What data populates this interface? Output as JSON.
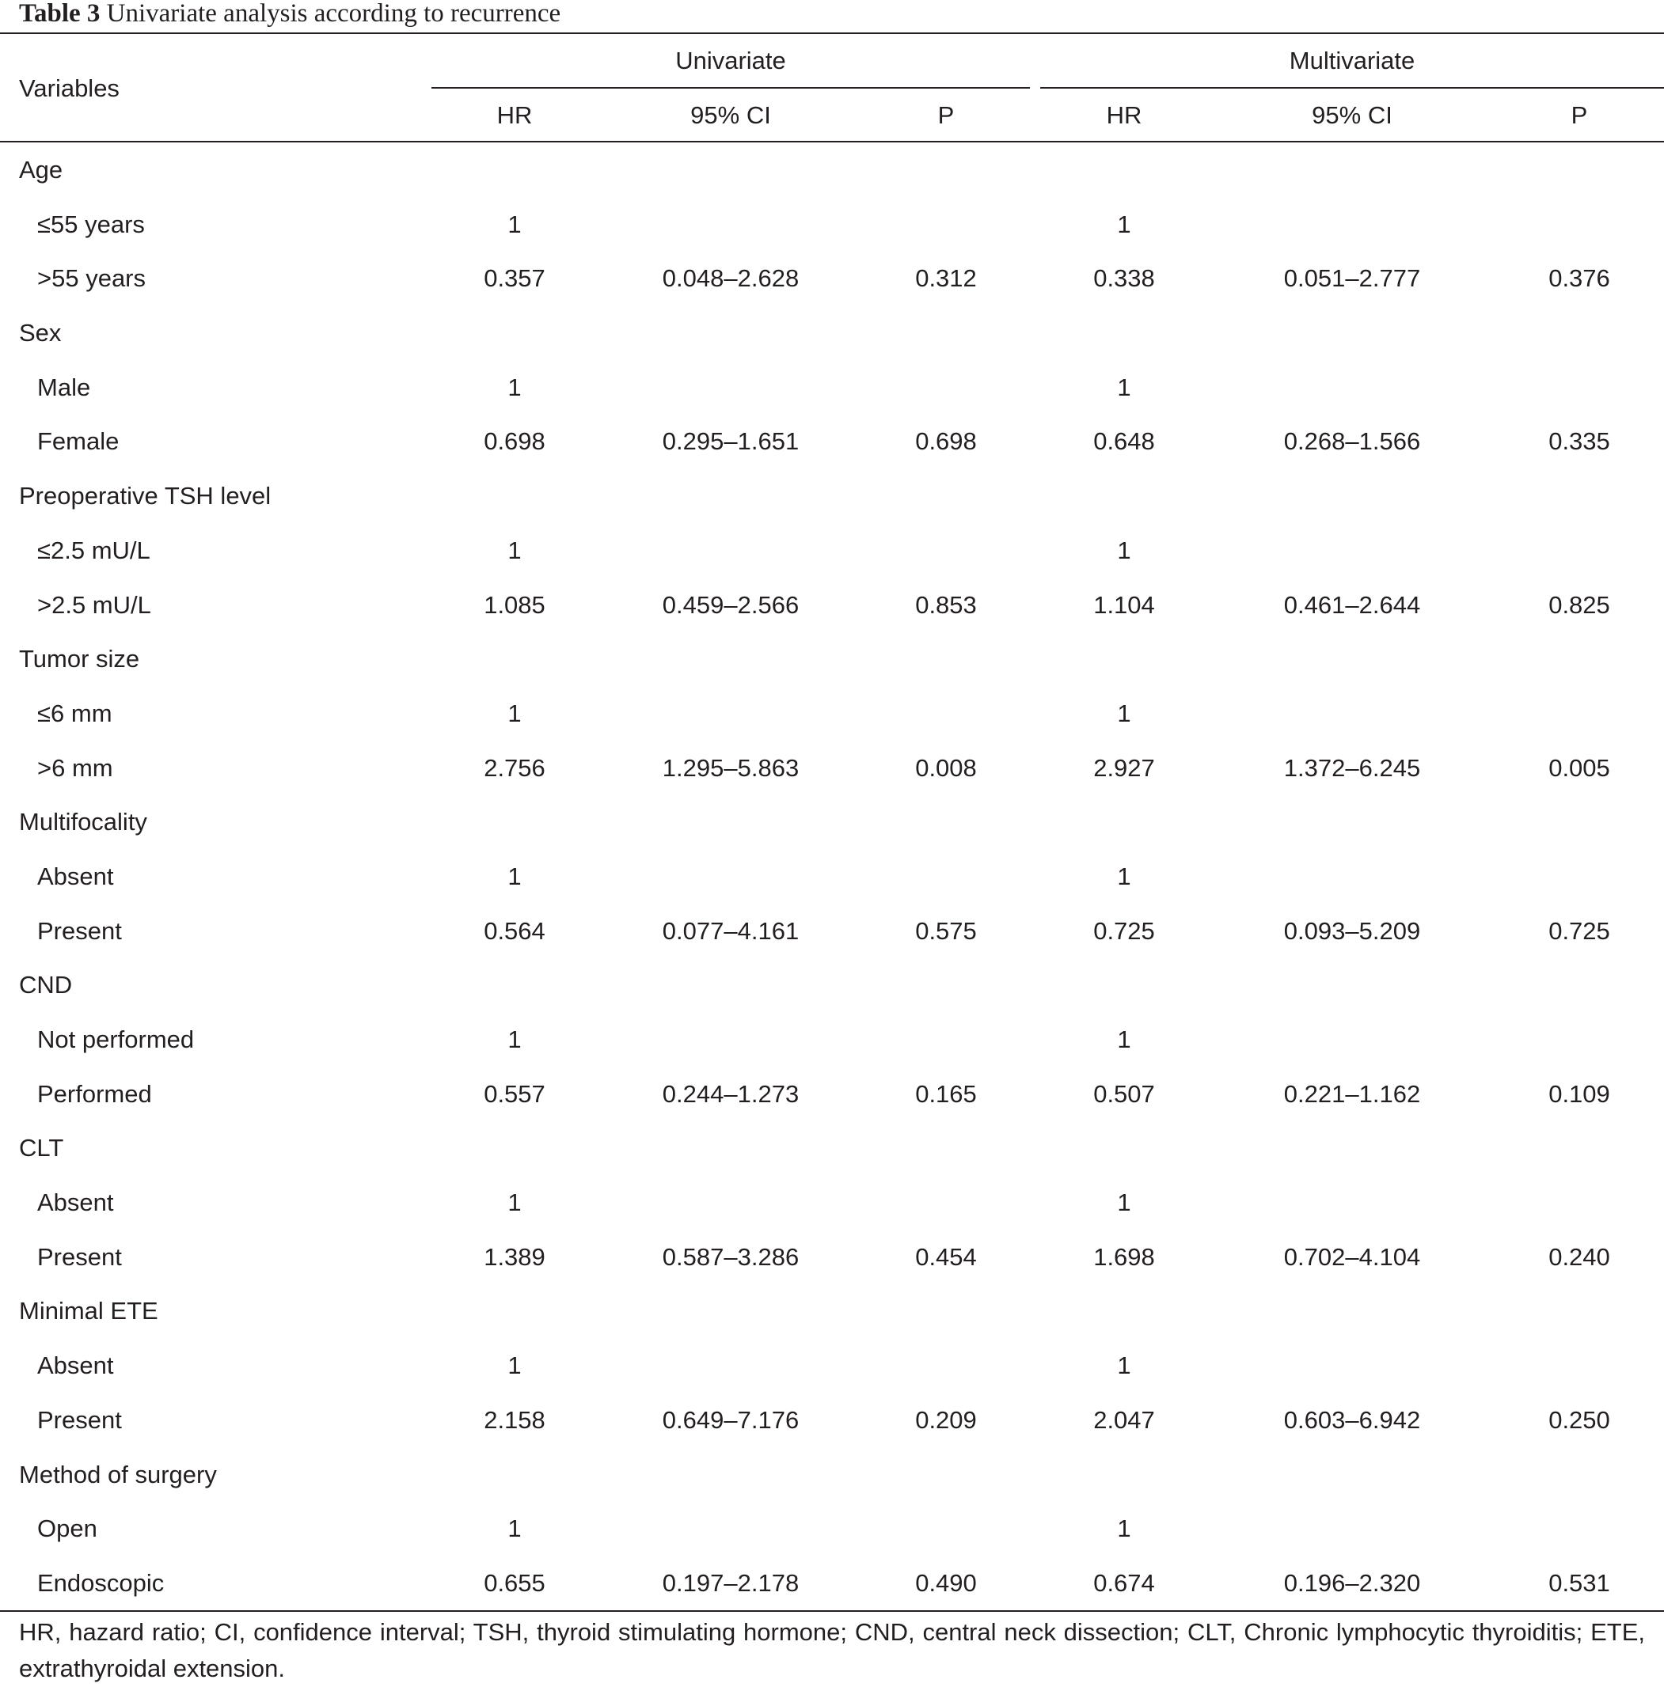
{
  "caption": {
    "label": "Table 3",
    "title": "Univariate analysis according to recurrence"
  },
  "header": {
    "variables": "Variables",
    "univariate": "Univariate",
    "multivariate": "Multivariate",
    "hr": "HR",
    "ci": "95% CI",
    "p": "P"
  },
  "rows": [
    {
      "type": "group",
      "label": "Age"
    },
    {
      "type": "item",
      "label": "≤55 years",
      "u_hr": "1",
      "u_ci": "",
      "u_p": "",
      "m_hr": "1",
      "m_ci": "",
      "m_p": ""
    },
    {
      "type": "item",
      "label": ">55 years",
      "u_hr": "0.357",
      "u_ci": "0.048–2.628",
      "u_p": "0.312",
      "m_hr": "0.338",
      "m_ci": "0.051–2.777",
      "m_p": "0.376"
    },
    {
      "type": "group",
      "label": "Sex"
    },
    {
      "type": "item",
      "label": "Male",
      "u_hr": "1",
      "u_ci": "",
      "u_p": "",
      "m_hr": "1",
      "m_ci": "",
      "m_p": ""
    },
    {
      "type": "item",
      "label": "Female",
      "u_hr": "0.698",
      "u_ci": "0.295–1.651",
      "u_p": "0.698",
      "m_hr": "0.648",
      "m_ci": "0.268–1.566",
      "m_p": "0.335"
    },
    {
      "type": "group",
      "label": "Preoperative TSH level"
    },
    {
      "type": "item",
      "label": "≤2.5 mU/L",
      "u_hr": "1",
      "u_ci": "",
      "u_p": "",
      "m_hr": "1",
      "m_ci": "",
      "m_p": ""
    },
    {
      "type": "item",
      "label": ">2.5 mU/L",
      "u_hr": "1.085",
      "u_ci": "0.459–2.566",
      "u_p": "0.853",
      "m_hr": "1.104",
      "m_ci": "0.461–2.644",
      "m_p": "0.825"
    },
    {
      "type": "group",
      "label": "Tumor size"
    },
    {
      "type": "item",
      "label": "≤6 mm",
      "u_hr": "1",
      "u_ci": "",
      "u_p": "",
      "m_hr": "1",
      "m_ci": "",
      "m_p": ""
    },
    {
      "type": "item",
      "label": ">6 mm",
      "u_hr": "2.756",
      "u_ci": "1.295–5.863",
      "u_p": "0.008",
      "m_hr": "2.927",
      "m_ci": "1.372–6.245",
      "m_p": "0.005"
    },
    {
      "type": "group",
      "label": "Multifocality"
    },
    {
      "type": "item",
      "label": "Absent",
      "u_hr": "1",
      "u_ci": "",
      "u_p": "",
      "m_hr": "1",
      "m_ci": "",
      "m_p": ""
    },
    {
      "type": "item",
      "label": "Present",
      "u_hr": "0.564",
      "u_ci": "0.077–4.161",
      "u_p": "0.575",
      "m_hr": "0.725",
      "m_ci": "0.093–5.209",
      "m_p": "0.725"
    },
    {
      "type": "group",
      "label": "CND"
    },
    {
      "type": "item",
      "label": "Not performed",
      "u_hr": "1",
      "u_ci": "",
      "u_p": "",
      "m_hr": "1",
      "m_ci": "",
      "m_p": ""
    },
    {
      "type": "item",
      "label": "Performed",
      "u_hr": "0.557",
      "u_ci": "0.244–1.273",
      "u_p": "0.165",
      "m_hr": "0.507",
      "m_ci": "0.221–1.162",
      "m_p": "0.109"
    },
    {
      "type": "group",
      "label": "CLT"
    },
    {
      "type": "item",
      "label": "Absent",
      "u_hr": "1",
      "u_ci": "",
      "u_p": "",
      "m_hr": "1",
      "m_ci": "",
      "m_p": ""
    },
    {
      "type": "item",
      "label": "Present",
      "u_hr": "1.389",
      "u_ci": "0.587–3.286",
      "u_p": "0.454",
      "m_hr": "1.698",
      "m_ci": "0.702–4.104",
      "m_p": "0.240"
    },
    {
      "type": "group",
      "label": "Minimal ETE"
    },
    {
      "type": "item",
      "label": "Absent",
      "u_hr": "1",
      "u_ci": "",
      "u_p": "",
      "m_hr": "1",
      "m_ci": "",
      "m_p": ""
    },
    {
      "type": "item",
      "label": "Present",
      "u_hr": "2.158",
      "u_ci": "0.649–7.176",
      "u_p": "0.209",
      "m_hr": "2.047",
      "m_ci": "0.603–6.942",
      "m_p": "0.250"
    },
    {
      "type": "group",
      "label": "Method of surgery"
    },
    {
      "type": "item",
      "label": "Open",
      "u_hr": "1",
      "u_ci": "",
      "u_p": "",
      "m_hr": "1",
      "m_ci": "",
      "m_p": ""
    },
    {
      "type": "item",
      "label": "Endoscopic",
      "u_hr": "0.655",
      "u_ci": "0.197–2.178",
      "u_p": "0.490",
      "m_hr": "0.674",
      "m_ci": "0.196–2.320",
      "m_p": "0.531"
    }
  ],
  "footnote": "HR, hazard ratio; CI, confidence interval; TSH, thyroid stimulating hormone; CND, central neck dissection; CLT, Chronic lymphocytic thyroiditis; ETE, extrathyroidal extension."
}
